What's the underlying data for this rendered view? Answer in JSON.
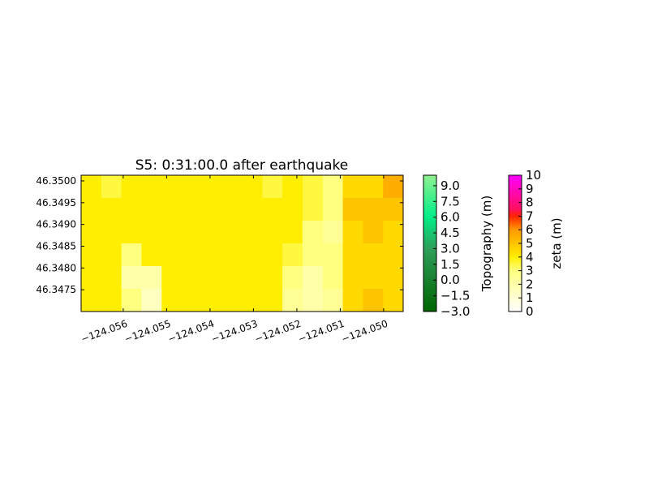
{
  "chart_data": {
    "type": "heatmap",
    "title": "S5: 0:31:00.0 after earthquake",
    "xlim": [
      -124.05697,
      -124.04955
    ],
    "ylim": [
      46.347,
      46.35013
    ],
    "xticks": [
      {
        "value": -124.056,
        "label": "−124.056"
      },
      {
        "value": -124.055,
        "label": "−124.055"
      },
      {
        "value": -124.054,
        "label": "−124.054"
      },
      {
        "value": -124.053,
        "label": "−124.053"
      },
      {
        "value": -124.052,
        "label": "−124.052"
      },
      {
        "value": -124.051,
        "label": "−124.051"
      },
      {
        "value": -124.05,
        "label": "−124.050"
      }
    ],
    "yticks": [
      {
        "value": 46.3475,
        "label": "46.3475"
      },
      {
        "value": 46.348,
        "label": "46.3480"
      },
      {
        "value": 46.3485,
        "label": "46.3485"
      },
      {
        "value": 46.349,
        "label": "46.3490"
      },
      {
        "value": 46.3495,
        "label": "46.3495"
      },
      {
        "value": 46.35,
        "label": "46.3500"
      }
    ],
    "z": [
      [
        4,
        3.5,
        4,
        4,
        4,
        4,
        4,
        4,
        4,
        3.5,
        4,
        3.5,
        3,
        4.5,
        4.5,
        5.5
      ],
      [
        4,
        4,
        4,
        4,
        4,
        4,
        4,
        4,
        4,
        4,
        4,
        3.5,
        3,
        5,
        5,
        5
      ],
      [
        4,
        4,
        4,
        4,
        4,
        4,
        4,
        4,
        4,
        4,
        4,
        3,
        2.5,
        4.5,
        5,
        4.5
      ],
      [
        4,
        4,
        3,
        4,
        4,
        4,
        4,
        4,
        4,
        4,
        3.5,
        3,
        3,
        4.5,
        4.5,
        4.5
      ],
      [
        4,
        4,
        2,
        2,
        4,
        4,
        4,
        4,
        4,
        4,
        3,
        2,
        3,
        4.5,
        4.5,
        4.5
      ],
      [
        4,
        4,
        3,
        1.5,
        4,
        4,
        4,
        4,
        4,
        4,
        2.5,
        2,
        2.5,
        4.5,
        5,
        4.5
      ]
    ],
    "colorbars": [
      {
        "label": "Topography (m)",
        "lim": [
          -3,
          10
        ],
        "ticks": [
          {
            "value": -3,
            "label": "−3.0"
          },
          {
            "value": -1.5,
            "label": "−1.5"
          },
          {
            "value": 0,
            "label": "0.0"
          },
          {
            "value": 1.5,
            "label": "1.5"
          },
          {
            "value": 3,
            "label": "3.0"
          },
          {
            "value": 4.5,
            "label": "4.5"
          },
          {
            "value": 6,
            "label": "6.0"
          },
          {
            "value": 7.5,
            "label": "7.5"
          },
          {
            "value": 9,
            "label": "9.0"
          }
        ],
        "colormap": [
          [
            -3,
            "#006400"
          ],
          [
            3,
            "#2e9e5a"
          ],
          [
            6,
            "#00ee88"
          ],
          [
            10,
            "#90f090"
          ]
        ]
      },
      {
        "label": "zeta (m)",
        "lim": [
          0,
          10
        ],
        "ticks": [
          0,
          1,
          2,
          3,
          4,
          5,
          6,
          7,
          8,
          9,
          10
        ],
        "colormap": [
          [
            0,
            "#ffffff"
          ],
          [
            3,
            "#ffff80"
          ],
          [
            4,
            "#ffee00"
          ],
          [
            6,
            "#ff9900"
          ],
          [
            7,
            "#ff2200"
          ],
          [
            7.5,
            "#ff1060"
          ],
          [
            10,
            "#ff00ff"
          ]
        ]
      }
    ]
  }
}
